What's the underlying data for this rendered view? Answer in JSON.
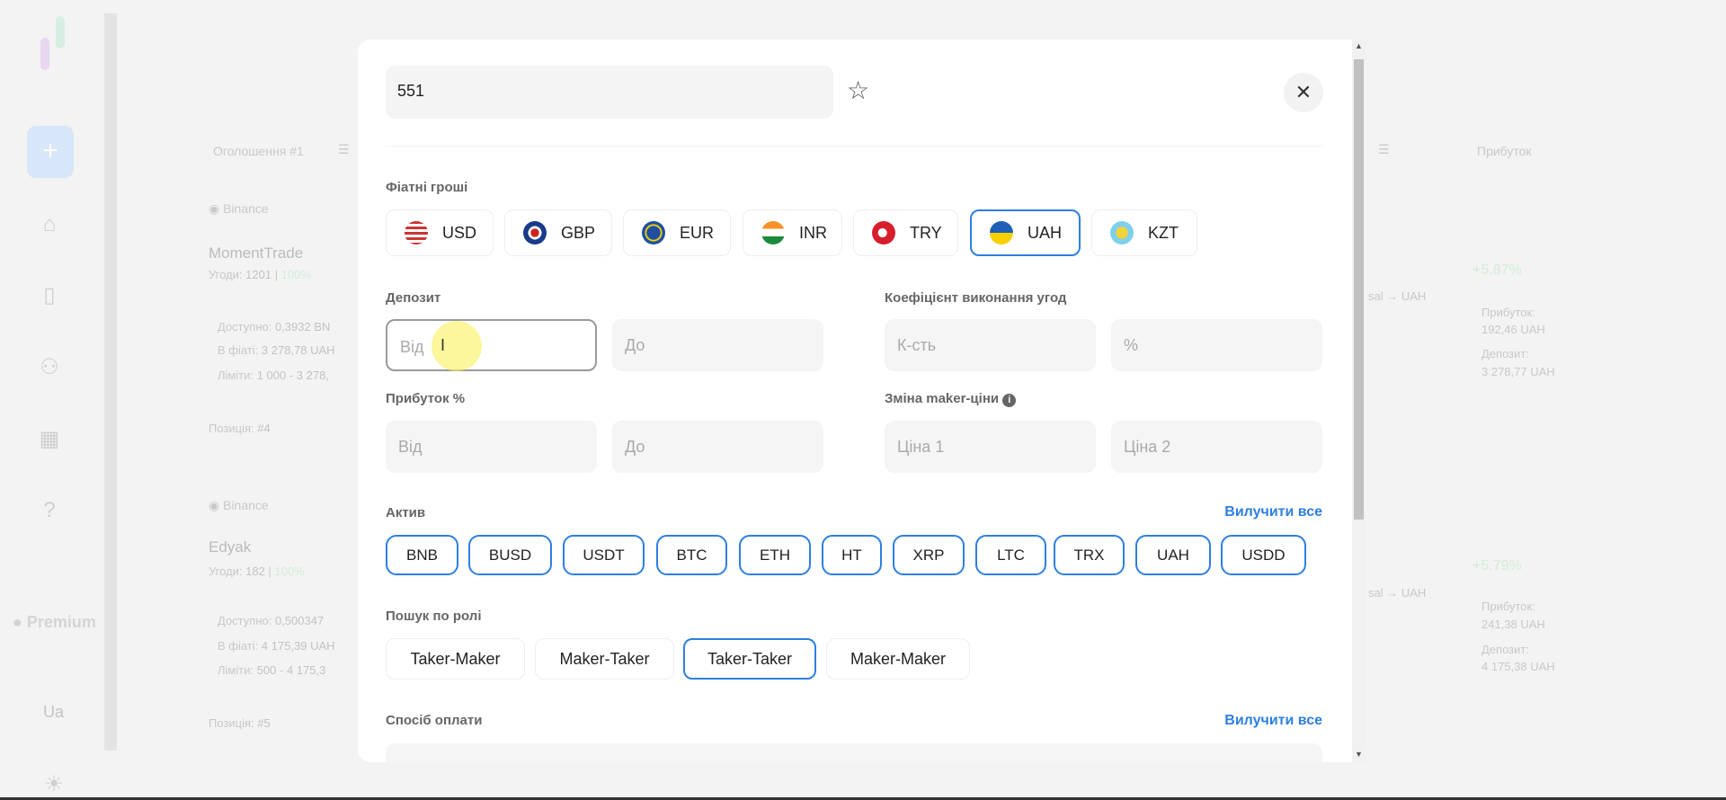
{
  "sidebar": {
    "premium": "Premium",
    "lang": "Ua"
  },
  "background": {
    "col1_header": "Оголошення #1",
    "col_profit_header": "Прибуток",
    "cards": [
      {
        "exchange": "Binance",
        "name": "MomentTrade",
        "deals_label": "Угоди:",
        "deals": "1201",
        "rate": "100%",
        "avail_label": "Доступно:",
        "avail": "0,3932 BN",
        "fiat_label": "В фіаті:",
        "fiat": "3 278,78 UAH",
        "limits_label": "Ліміти:",
        "limits": "1 000 - 3 278,",
        "pos_label": "Позиція:",
        "pos": "#4",
        "route": "sal",
        "route_to": "→ UAH",
        "pct": "+5.87%",
        "profit_label": "Прибуток:",
        "profit": "192,46 UAH",
        "deposit_label": "Депозит:",
        "deposit": "3 278,77 UAH"
      },
      {
        "exchange": "Binance",
        "name": "Edyak",
        "deals_label": "Угоди:",
        "deals": "182",
        "rate": "100%",
        "avail_label": "Доступно:",
        "avail": "0,500347",
        "fiat_label": "В фіаті:",
        "fiat": "4 175,39 UAH",
        "limits_label": "Ліміти:",
        "limits": "500 - 4 175,3",
        "pos_label": "Позиція:",
        "pos": "#5",
        "route": "sal",
        "route_to": "→ UAH",
        "pct": "+5.79%",
        "profit_label": "Прибуток:",
        "profit": "241,38 UAH",
        "deposit_label": "Депозит:",
        "deposit": "4 175,38 UAH"
      }
    ]
  },
  "modal": {
    "name_value": "551",
    "fiat_label": "Фіатні гроші",
    "currencies": [
      "USD",
      "GBP",
      "EUR",
      "INR",
      "TRY",
      "UAH",
      "KZT"
    ],
    "selected_currency": "UAH",
    "deposit_label": "Депозит",
    "deposit_from": "Від",
    "deposit_to": "До",
    "completion_label": "Коефіцієнт виконання угод",
    "completion_count": "К-сть",
    "completion_pct": "%",
    "profit_label": "Прибуток %",
    "profit_from": "Від",
    "profit_to": "До",
    "maker_label": "Зміна maker-ціни",
    "price1": "Ціна 1",
    "price2": "Ціна 2",
    "asset_label": "Актив",
    "remove_all": "Вилучити все",
    "assets": [
      "BNB",
      "BUSD",
      "USDT",
      "BTC",
      "ETH",
      "HT",
      "XRP",
      "LTC",
      "TRX",
      "UAH",
      "USDD"
    ],
    "role_label": "Пошук по ролі",
    "roles": [
      "Taker-Maker",
      "Maker-Taker",
      "Taker-Taker",
      "Maker-Maker"
    ],
    "selected_role": "Taker-Taker",
    "payment_label": "Спосіб оплати",
    "payment_remove_all": "Вилучити все"
  },
  "colors": {
    "accent": "#2d7fe0"
  }
}
